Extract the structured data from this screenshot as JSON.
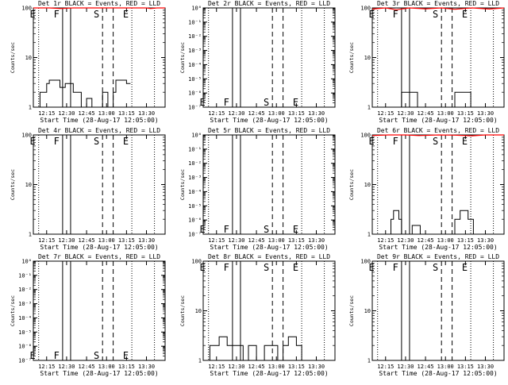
{
  "colors": {
    "events": "#000000",
    "lld": "#ff0000",
    "background": "#ffffff"
  },
  "xlabel": "Start Time (28-Aug-17 12:05:00)",
  "ylabel": "Counts/sec",
  "x_ticks": [
    "12:15",
    "12:30",
    "12:45",
    "13:00",
    "13:15",
    "13:30"
  ],
  "x_tick_minutes": [
    10,
    25,
    40,
    55,
    70,
    85
  ],
  "x_range_minutes": [
    0,
    99
  ],
  "markers": [
    {
      "label": "E",
      "minute": 4,
      "style": "dotted"
    },
    {
      "label": "F",
      "minute": 22,
      "style": "solid"
    },
    {
      "label": "",
      "minute": 28,
      "style": "solid"
    },
    {
      "label": "S",
      "minute": 52,
      "style": "dashed"
    },
    {
      "label": "",
      "minute": 60,
      "style": "dashed"
    },
    {
      "label": "E",
      "minute": 74,
      "style": "dotted"
    },
    {
      "label": "",
      "minute": 91,
      "style": "dotted"
    }
  ],
  "chart_data": [
    {
      "type": "line",
      "title": "Det 1r BLACK = Events, RED = LLD",
      "ylabel": "Counts/sec",
      "xlabel": "Start Time (28-Aug-17 12:05:00)",
      "y_scale": "log",
      "ylim": [
        1,
        100
      ],
      "y_ticks": [
        "1",
        "10",
        "100"
      ],
      "y_tick_values": [
        1,
        10,
        100
      ],
      "marker_label_pos": "top",
      "series": [
        {
          "values": [
            [
              5,
              1
            ],
            [
              5,
              2
            ],
            [
              10,
              2
            ],
            [
              10,
              3
            ],
            [
              12,
              3
            ],
            [
              12,
              3.5
            ],
            [
              20,
              3.5
            ],
            [
              20,
              2.5
            ],
            [
              24,
              2.5
            ],
            [
              24,
              3
            ],
            [
              30,
              3
            ],
            [
              30,
              2
            ],
            [
              36,
              2
            ],
            [
              36,
              1
            ],
            [
              40,
              1
            ],
            [
              40,
              1.5
            ],
            [
              44,
              1.5
            ],
            [
              44,
              1
            ],
            [
              50,
              1
            ],
            [
              52,
              1
            ],
            [
              52,
              2
            ],
            [
              56,
              2
            ],
            [
              56,
              1
            ],
            [
              60,
              1
            ],
            [
              60,
              2
            ],
            [
              62,
              2
            ],
            [
              62,
              3.5
            ],
            [
              70,
              3.5
            ],
            [
              70,
              3
            ],
            [
              73,
              3
            ]
          ]
        },
        {
          "values": [
            [
              0,
              100
            ],
            [
              12,
              100
            ],
            [
              20,
              97
            ],
            [
              30,
              100
            ],
            [
              85,
              100
            ],
            [
              88,
              97
            ],
            [
              93,
              100
            ],
            [
              99,
              100
            ]
          ]
        }
      ]
    },
    {
      "type": "line",
      "title": "Det 2r BLACK = Events, RED = LLD",
      "ylabel": "Counts/sec",
      "xlabel": "Start Time (28-Aug-17 12:05:00)",
      "y_scale": "log",
      "ylim": [
        1e-07,
        1
      ],
      "y_ticks": [
        "10⁻⁷",
        "10⁻⁶",
        "10⁻⁵",
        "10⁻⁴",
        "10⁻³",
        "10⁻²",
        "10⁻¹",
        "10⁰"
      ],
      "y_tick_values": [
        1e-07,
        1e-06,
        1e-05,
        0.0001,
        0.001,
        0.01,
        0.1,
        1
      ],
      "marker_label_pos": "bottom",
      "series": []
    },
    {
      "type": "line",
      "title": "Det 3r BLACK = Events, RED = LLD",
      "ylabel": "Counts/sec",
      "xlabel": "Start Time (28-Aug-17 12:05:00)",
      "y_scale": "log",
      "ylim": [
        1,
        100
      ],
      "y_ticks": [
        "1",
        "10",
        "100"
      ],
      "y_tick_values": [
        1,
        10,
        100
      ],
      "marker_label_pos": "top",
      "series": [
        {
          "values": [
            [
              22,
              1
            ],
            [
              22,
              2
            ],
            [
              34,
              2
            ],
            [
              34,
              1
            ],
            [
              62,
              1
            ],
            [
              62,
              2
            ],
            [
              74,
              2
            ],
            [
              74,
              1
            ]
          ]
        },
        {
          "values": [
            [
              0,
              95
            ],
            [
              10,
              100
            ],
            [
              18,
              92
            ],
            [
              28,
              100
            ],
            [
              40,
              96
            ],
            [
              52,
              100
            ],
            [
              62,
              94
            ],
            [
              75,
              100
            ],
            [
              88,
              95
            ],
            [
              99,
              100
            ]
          ]
        }
      ]
    },
    {
      "type": "line",
      "title": "Det 4r BLACK = Events, RED = LLD",
      "ylabel": "Counts/sec",
      "xlabel": "Start Time (28-Aug-17 12:05:00)",
      "y_scale": "log",
      "ylim": [
        1,
        100
      ],
      "y_ticks": [
        "1",
        "10",
        "100"
      ],
      "y_tick_values": [
        1,
        10,
        100
      ],
      "marker_label_pos": "top",
      "series": []
    },
    {
      "type": "line",
      "title": "Det 5r BLACK = Events, RED = LLD",
      "ylabel": "Counts/sec",
      "xlabel": "Start Time (28-Aug-17 12:05:00)",
      "y_scale": "log",
      "ylim": [
        1e-07,
        1
      ],
      "y_ticks": [
        "10⁻⁷",
        "10⁻⁶",
        "10⁻⁵",
        "10⁻⁴",
        "10⁻³",
        "10⁻²",
        "10⁻¹",
        "10⁰"
      ],
      "y_tick_values": [
        1e-07,
        1e-06,
        1e-05,
        0.0001,
        0.001,
        0.01,
        0.1,
        1
      ],
      "marker_label_pos": "bottom",
      "series": []
    },
    {
      "type": "line",
      "title": "Det 6r BLACK = Events, RED = LLD",
      "ylabel": "Counts/sec",
      "xlabel": "Start Time (28-Aug-17 12:05:00)",
      "y_scale": "log",
      "ylim": [
        1,
        100
      ],
      "y_ticks": [
        "1",
        "10",
        "100"
      ],
      "y_tick_values": [
        1,
        10,
        100
      ],
      "marker_label_pos": "top",
      "series": [
        {
          "values": [
            [
              14,
              1
            ],
            [
              14,
              2
            ],
            [
              16,
              2
            ],
            [
              16,
              3
            ],
            [
              20,
              3
            ],
            [
              20,
              2
            ],
            [
              22,
              2
            ],
            [
              22,
              1
            ],
            [
              30,
              1
            ],
            [
              30,
              1.5
            ],
            [
              36,
              1.5
            ],
            [
              36,
              1
            ],
            [
              62,
              1
            ],
            [
              62,
              2
            ],
            [
              66,
              2
            ],
            [
              66,
              3
            ],
            [
              72,
              3
            ],
            [
              72,
              2
            ],
            [
              76,
              2
            ],
            [
              76,
              1
            ]
          ]
        },
        {
          "values": [
            [
              0,
              97
            ],
            [
              12,
              100
            ],
            [
              25,
              100
            ],
            [
              35,
              97
            ],
            [
              50,
              100
            ],
            [
              62,
              99
            ],
            [
              75,
              96
            ],
            [
              85,
              100
            ],
            [
              99,
              100
            ]
          ]
        }
      ]
    },
    {
      "type": "line",
      "title": "Det 7r BLACK = Events, RED = LLD",
      "ylabel": "Counts/sec",
      "xlabel": "Start Time (28-Aug-17 12:05:00)",
      "y_scale": "log",
      "ylim": [
        1e-07,
        1
      ],
      "y_ticks": [
        "10⁻⁷",
        "10⁻⁶",
        "10⁻⁵",
        "10⁻⁴",
        "10⁻³",
        "10⁻²",
        "10⁻¹",
        "10⁰"
      ],
      "y_tick_values": [
        1e-07,
        1e-06,
        1e-05,
        0.0001,
        0.001,
        0.01,
        0.1,
        1
      ],
      "marker_label_pos": "bottom",
      "series": []
    },
    {
      "type": "line",
      "title": "Det 8r BLACK = Events, RED = LLD",
      "ylabel": "Counts/sec",
      "xlabel": "Start Time (28-Aug-17 12:05:00)",
      "y_scale": "log",
      "ylim": [
        1,
        100
      ],
      "y_ticks": [
        "1",
        "10",
        "100"
      ],
      "y_tick_values": [
        1,
        10,
        100
      ],
      "marker_label_pos": "top",
      "series": [
        {
          "values": [
            [
              5,
              1
            ],
            [
              5,
              2
            ],
            [
              12,
              2
            ],
            [
              12,
              3
            ],
            [
              18,
              3
            ],
            [
              18,
              2
            ],
            [
              30,
              2
            ],
            [
              30,
              1
            ],
            [
              34,
              1
            ],
            [
              34,
              2
            ],
            [
              40,
              2
            ],
            [
              40,
              1
            ],
            [
              46,
              1
            ],
            [
              46,
              2
            ],
            [
              56,
              2
            ],
            [
              56,
              1
            ],
            [
              60,
              1
            ],
            [
              60,
              2
            ],
            [
              64,
              2
            ],
            [
              64,
              3
            ],
            [
              70,
              3
            ],
            [
              70,
              2
            ],
            [
              74,
              2
            ],
            [
              74,
              1
            ]
          ]
        }
      ]
    },
    {
      "type": "line",
      "title": "Det 9r BLACK = Events, RED = LLD",
      "ylabel": "Counts/sec",
      "xlabel": "Start Time (28-Aug-17 12:05:00)",
      "y_scale": "log",
      "ylim": [
        1,
        100
      ],
      "y_ticks": [
        "1",
        "10",
        "100"
      ],
      "y_tick_values": [
        1,
        10,
        100
      ],
      "marker_label_pos": "top",
      "series": []
    }
  ]
}
